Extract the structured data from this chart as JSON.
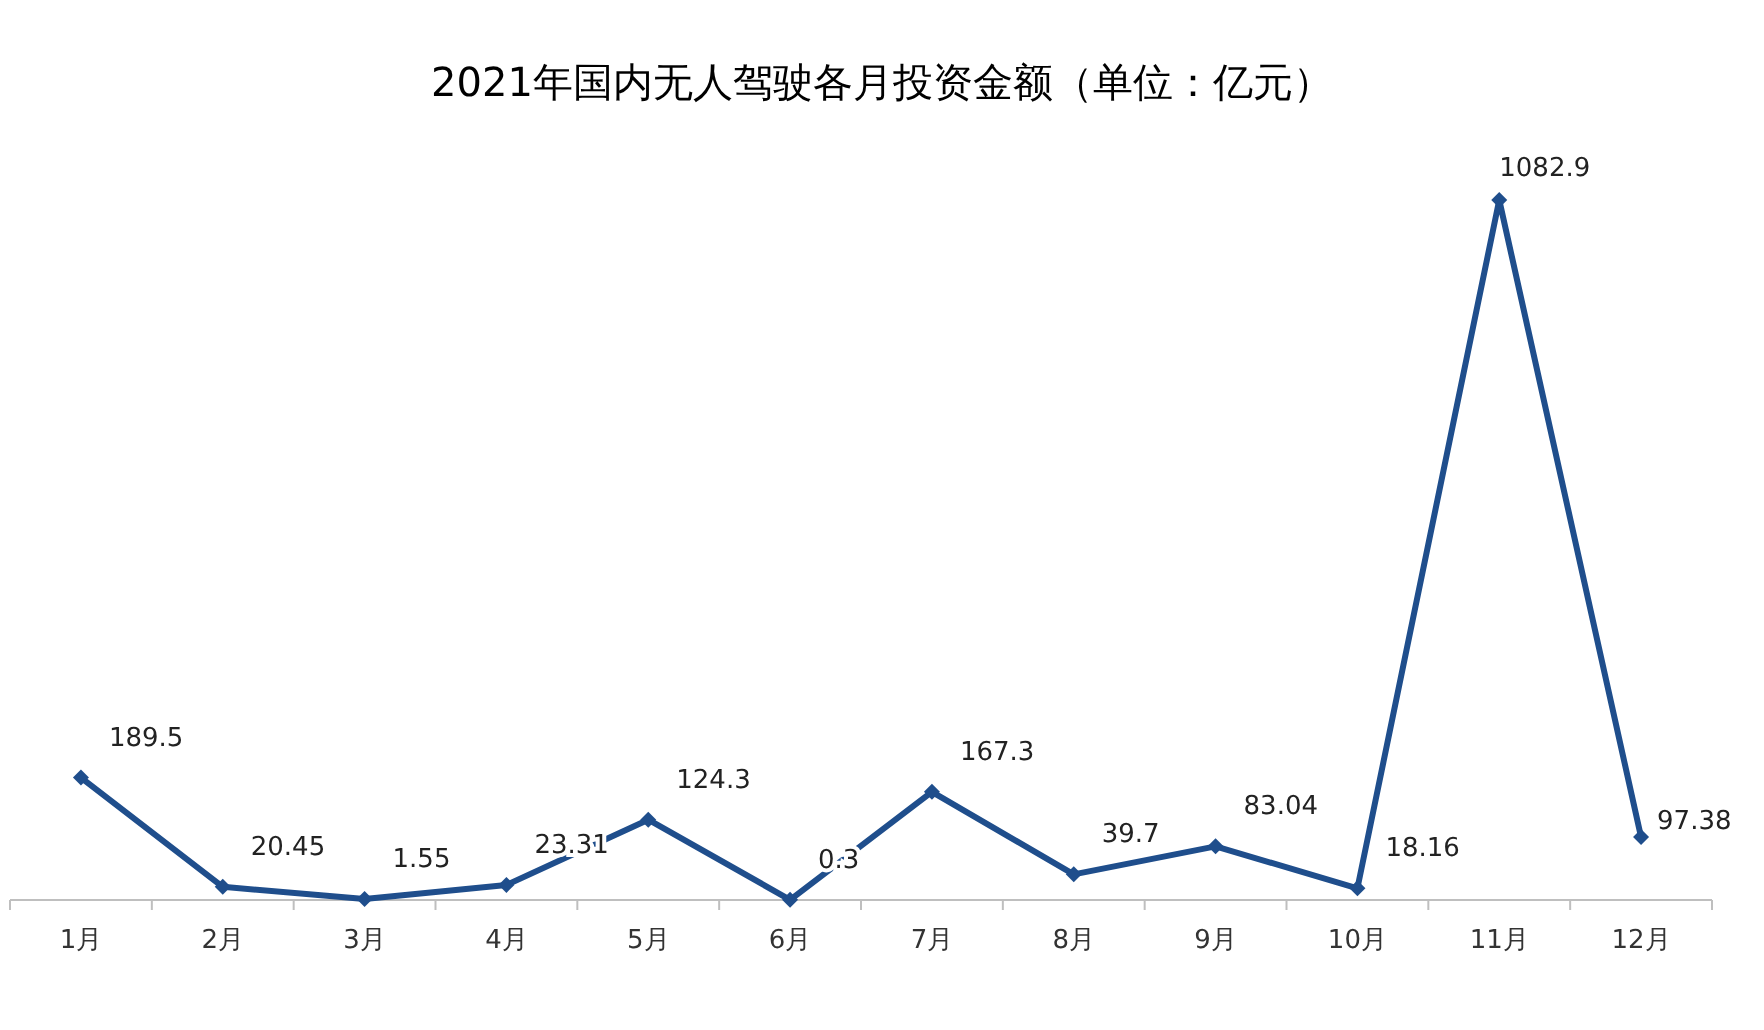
{
  "chart_data": {
    "type": "line",
    "title": "2021年国内无人驾驶各月投资金额（单位：亿元）",
    "categories": [
      "1月",
      "2月",
      "3月",
      "4月",
      "5月",
      "6月",
      "7月",
      "8月",
      "9月",
      "10月",
      "11月",
      "12月"
    ],
    "series": [
      {
        "color": "#1f4e8c",
        "values": [
          189.5,
          20.45,
          1.55,
          23.31,
          124.3,
          0.3,
          167.3,
          39.7,
          83.04,
          18.16,
          1082.9,
          97.38
        ]
      }
    ],
    "data_labels": true,
    "marker": "diamond"
  }
}
